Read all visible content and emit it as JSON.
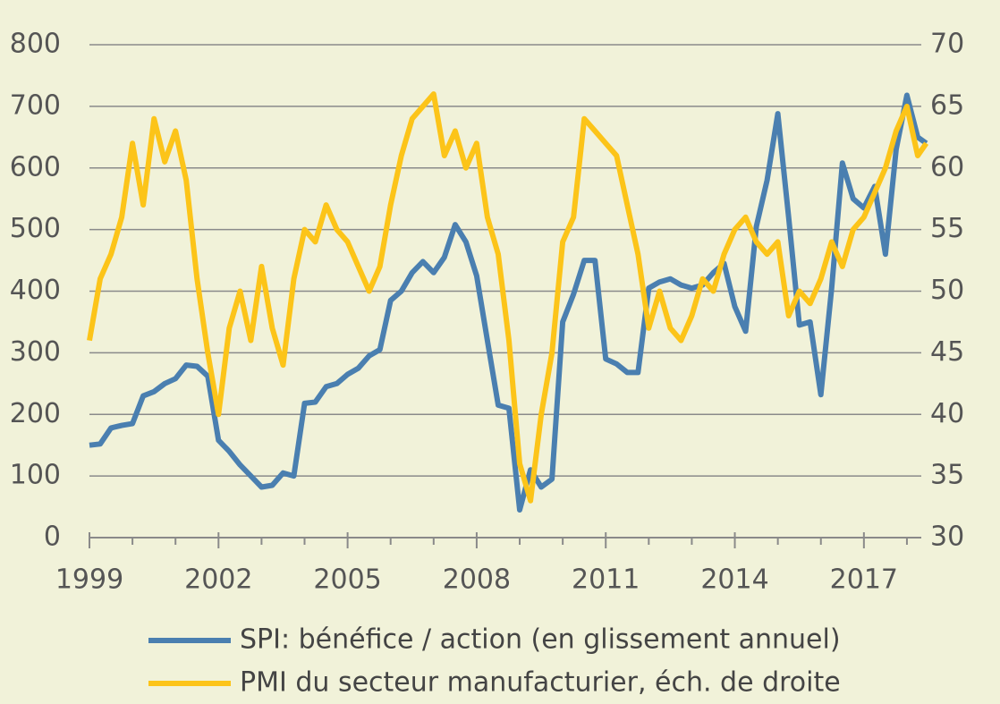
{
  "chart_data": {
    "type": "line",
    "x": [
      1999.0,
      1999.25,
      1999.5,
      1999.75,
      2000.0,
      2000.25,
      2000.5,
      2000.75,
      2001.0,
      2001.25,
      2001.5,
      2001.75,
      2002.0,
      2002.25,
      2002.5,
      2002.75,
      2003.0,
      2003.25,
      2003.5,
      2003.75,
      2004.0,
      2004.25,
      2004.5,
      2004.75,
      2005.0,
      2005.25,
      2005.5,
      2005.75,
      2006.0,
      2006.25,
      2006.5,
      2006.75,
      2007.0,
      2007.25,
      2007.5,
      2007.75,
      2008.0,
      2008.25,
      2008.5,
      2008.75,
      2009.0,
      2009.25,
      2009.5,
      2009.75,
      2010.0,
      2010.25,
      2010.5,
      2010.75,
      2011.0,
      2011.25,
      2011.5,
      2011.75,
      2012.0,
      2012.25,
      2012.5,
      2012.75,
      2013.0,
      2013.25,
      2013.5,
      2013.75,
      2014.0,
      2014.25,
      2014.5,
      2014.75,
      2015.0,
      2015.25,
      2015.5,
      2015.75,
      2016.0,
      2016.25,
      2016.5,
      2016.75,
      2017.0,
      2017.25,
      2017.5,
      2017.75,
      2018.0,
      2018.25,
      2018.45
    ],
    "series": [
      {
        "name": "SPI: bénéfice / action (en glissement annuel)",
        "color": "#4a7fb0",
        "axis": "y",
        "values": [
          150,
          152,
          178,
          182,
          185,
          230,
          237,
          250,
          258,
          280,
          278,
          262,
          158,
          140,
          118,
          100,
          82,
          85,
          105,
          100,
          218,
          220,
          245,
          250,
          265,
          275,
          295,
          305,
          385,
          400,
          430,
          448,
          430,
          455,
          508,
          480,
          425,
          320,
          215,
          210,
          45,
          110,
          82,
          95,
          350,
          395,
          450,
          450,
          290,
          282,
          268,
          268,
          405,
          415,
          420,
          410,
          405,
          410,
          430,
          445,
          375,
          335,
          505,
          580,
          688,
          520,
          345,
          350,
          232,
          405,
          608,
          550,
          535,
          570,
          460,
          630,
          718,
          650,
          640
        ]
      },
      {
        "name": "PMI du secteur manufacturier, éch. de droite",
        "color": "#fcc419",
        "axis": "y2",
        "values": [
          46,
          51,
          53,
          56,
          62,
          57,
          64,
          60.5,
          63,
          59,
          51,
          45,
          40,
          47,
          50,
          46,
          52,
          47,
          44,
          51,
          55,
          54,
          57,
          55,
          54,
          52,
          50,
          52,
          57,
          61,
          64,
          65,
          66,
          61,
          63,
          60,
          62,
          56,
          53,
          46,
          36,
          33,
          40,
          45,
          54,
          56,
          64,
          63,
          62,
          61,
          57,
          53,
          47,
          50,
          47,
          46,
          48,
          51,
          50,
          53,
          55,
          56,
          54,
          53,
          54,
          48,
          50,
          49,
          51,
          54,
          52,
          55,
          56,
          58,
          60,
          63,
          65,
          61,
          62
        ]
      }
    ],
    "xlim": [
      1999,
      2018.5
    ],
    "xticks": [
      1999,
      2002,
      2005,
      2008,
      2011,
      2014,
      2017
    ],
    "xminorticks": [
      2000,
      2001,
      2003,
      2004,
      2006,
      2007,
      2009,
      2010,
      2012,
      2013,
      2015,
      2016,
      2018
    ],
    "ylim": [
      0,
      800
    ],
    "yticks": [
      0,
      100,
      200,
      300,
      400,
      500,
      600,
      700,
      800
    ],
    "y2lim": [
      30,
      70
    ],
    "y2ticks": [
      30,
      35,
      40,
      45,
      50,
      55,
      60,
      65,
      70
    ],
    "grid": true,
    "legend": "bottom"
  }
}
